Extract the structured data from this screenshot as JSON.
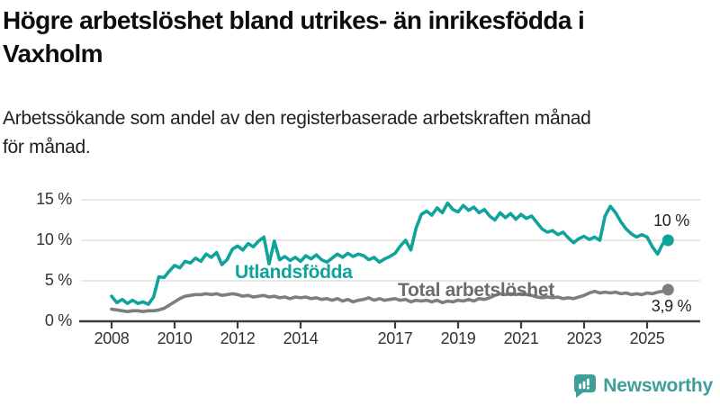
{
  "header": {
    "title_line1": "Högre arbetslöshet bland utrikes- än inrikesfödda i",
    "title_line2": "Vaxholm",
    "subtitle_line1": "Arbetssökande som andel av den registerbaserade arbetskraften månad",
    "subtitle_line2": "för månad."
  },
  "chart_data": {
    "type": "line",
    "unit": "%",
    "x_start_year": 2008,
    "x_step_months": 2,
    "x_end_approx": "2025-08",
    "ylim": [
      0,
      15
    ],
    "grid": true,
    "yticks": [
      {
        "value": 0,
        "label": "0 %"
      },
      {
        "value": 5,
        "label": "5 %"
      },
      {
        "value": 10,
        "label": "10 %"
      },
      {
        "value": 15,
        "label": "15 %"
      }
    ],
    "xticks": [
      {
        "year": 2008,
        "label": "2008"
      },
      {
        "year": 2010,
        "label": "2010"
      },
      {
        "year": 2012,
        "label": "2012"
      },
      {
        "year": 2014,
        "label": "2014"
      },
      {
        "year": 2017,
        "label": "2017"
      },
      {
        "year": 2019,
        "label": "2019"
      },
      {
        "year": 2021,
        "label": "2021"
      },
      {
        "year": 2023,
        "label": "2023"
      },
      {
        "year": 2025,
        "label": "2025"
      }
    ],
    "series": [
      {
        "name": "Utlandsfödda",
        "color": "#10a39b",
        "end_label": "10 %",
        "end_value": 10.0,
        "values": [
          3.1,
          2.3,
          2.7,
          2.2,
          2.6,
          2.2,
          2.4,
          2.1,
          3.0,
          5.5,
          5.4,
          6.2,
          6.9,
          6.6,
          7.4,
          7.2,
          7.8,
          7.4,
          8.3,
          7.9,
          8.5,
          7.0,
          7.6,
          8.9,
          9.3,
          8.8,
          9.6,
          9.2,
          9.9,
          10.4,
          7.1,
          9.9,
          7.6,
          8.0,
          7.5,
          7.9,
          7.4,
          8.1,
          7.7,
          8.2,
          7.6,
          7.3,
          7.8,
          8.3,
          7.9,
          8.4,
          8.0,
          8.3,
          8.1,
          7.6,
          7.9,
          7.3,
          7.7,
          8.0,
          8.4,
          9.3,
          10.0,
          8.8,
          11.5,
          13.2,
          13.6,
          13.1,
          14.0,
          13.4,
          14.6,
          13.8,
          13.5,
          14.3,
          13.7,
          14.1,
          13.4,
          13.8,
          13.0,
          12.5,
          13.4,
          12.8,
          13.3,
          12.6,
          13.2,
          12.7,
          13.0,
          12.2,
          11.4,
          11.0,
          11.2,
          10.7,
          11.0,
          10.3,
          9.7,
          10.2,
          10.5,
          10.1,
          10.4,
          10.0,
          13.0,
          14.2,
          13.4,
          12.3,
          11.4,
          10.8,
          10.4,
          10.7,
          10.4,
          9.2,
          8.3,
          9.6,
          10.0
        ]
      },
      {
        "name": "Total arbetslöshet",
        "color": "#7e7e7e",
        "end_label": "3,9 %",
        "end_value": 3.9,
        "values": [
          1.5,
          1.4,
          1.3,
          1.2,
          1.3,
          1.3,
          1.2,
          1.3,
          1.3,
          1.4,
          1.6,
          2.0,
          2.4,
          2.8,
          3.1,
          3.2,
          3.3,
          3.3,
          3.4,
          3.3,
          3.4,
          3.2,
          3.3,
          3.4,
          3.3,
          3.1,
          3.2,
          3.0,
          3.1,
          3.2,
          3.0,
          3.1,
          2.9,
          3.0,
          2.8,
          3.0,
          2.9,
          3.0,
          2.8,
          2.9,
          2.7,
          2.8,
          2.6,
          2.8,
          2.5,
          2.7,
          2.4,
          2.6,
          2.7,
          2.9,
          2.6,
          2.8,
          2.6,
          2.7,
          2.8,
          2.6,
          2.7,
          2.4,
          2.6,
          2.5,
          2.6,
          2.4,
          2.6,
          2.3,
          2.5,
          2.4,
          2.6,
          2.5,
          2.7,
          2.5,
          2.8,
          2.7,
          2.9,
          3.2,
          3.4,
          3.3,
          3.4,
          3.3,
          3.4,
          3.3,
          3.2,
          3.0,
          2.9,
          3.0,
          2.9,
          3.0,
          2.8,
          2.9,
          2.8,
          3.0,
          3.2,
          3.5,
          3.7,
          3.5,
          3.6,
          3.5,
          3.6,
          3.4,
          3.5,
          3.3,
          3.4,
          3.3,
          3.5,
          3.4,
          3.6,
          3.7,
          3.9
        ]
      }
    ]
  },
  "colors": {
    "axis": "#3c3c3c",
    "grid": "#dadada",
    "tick_text": "#333333"
  },
  "footer": {
    "brand": "Newsworthy",
    "brand_color": "#3f9e97",
    "logo_icon": "speech-bubble-bar-chart-exclamation"
  }
}
